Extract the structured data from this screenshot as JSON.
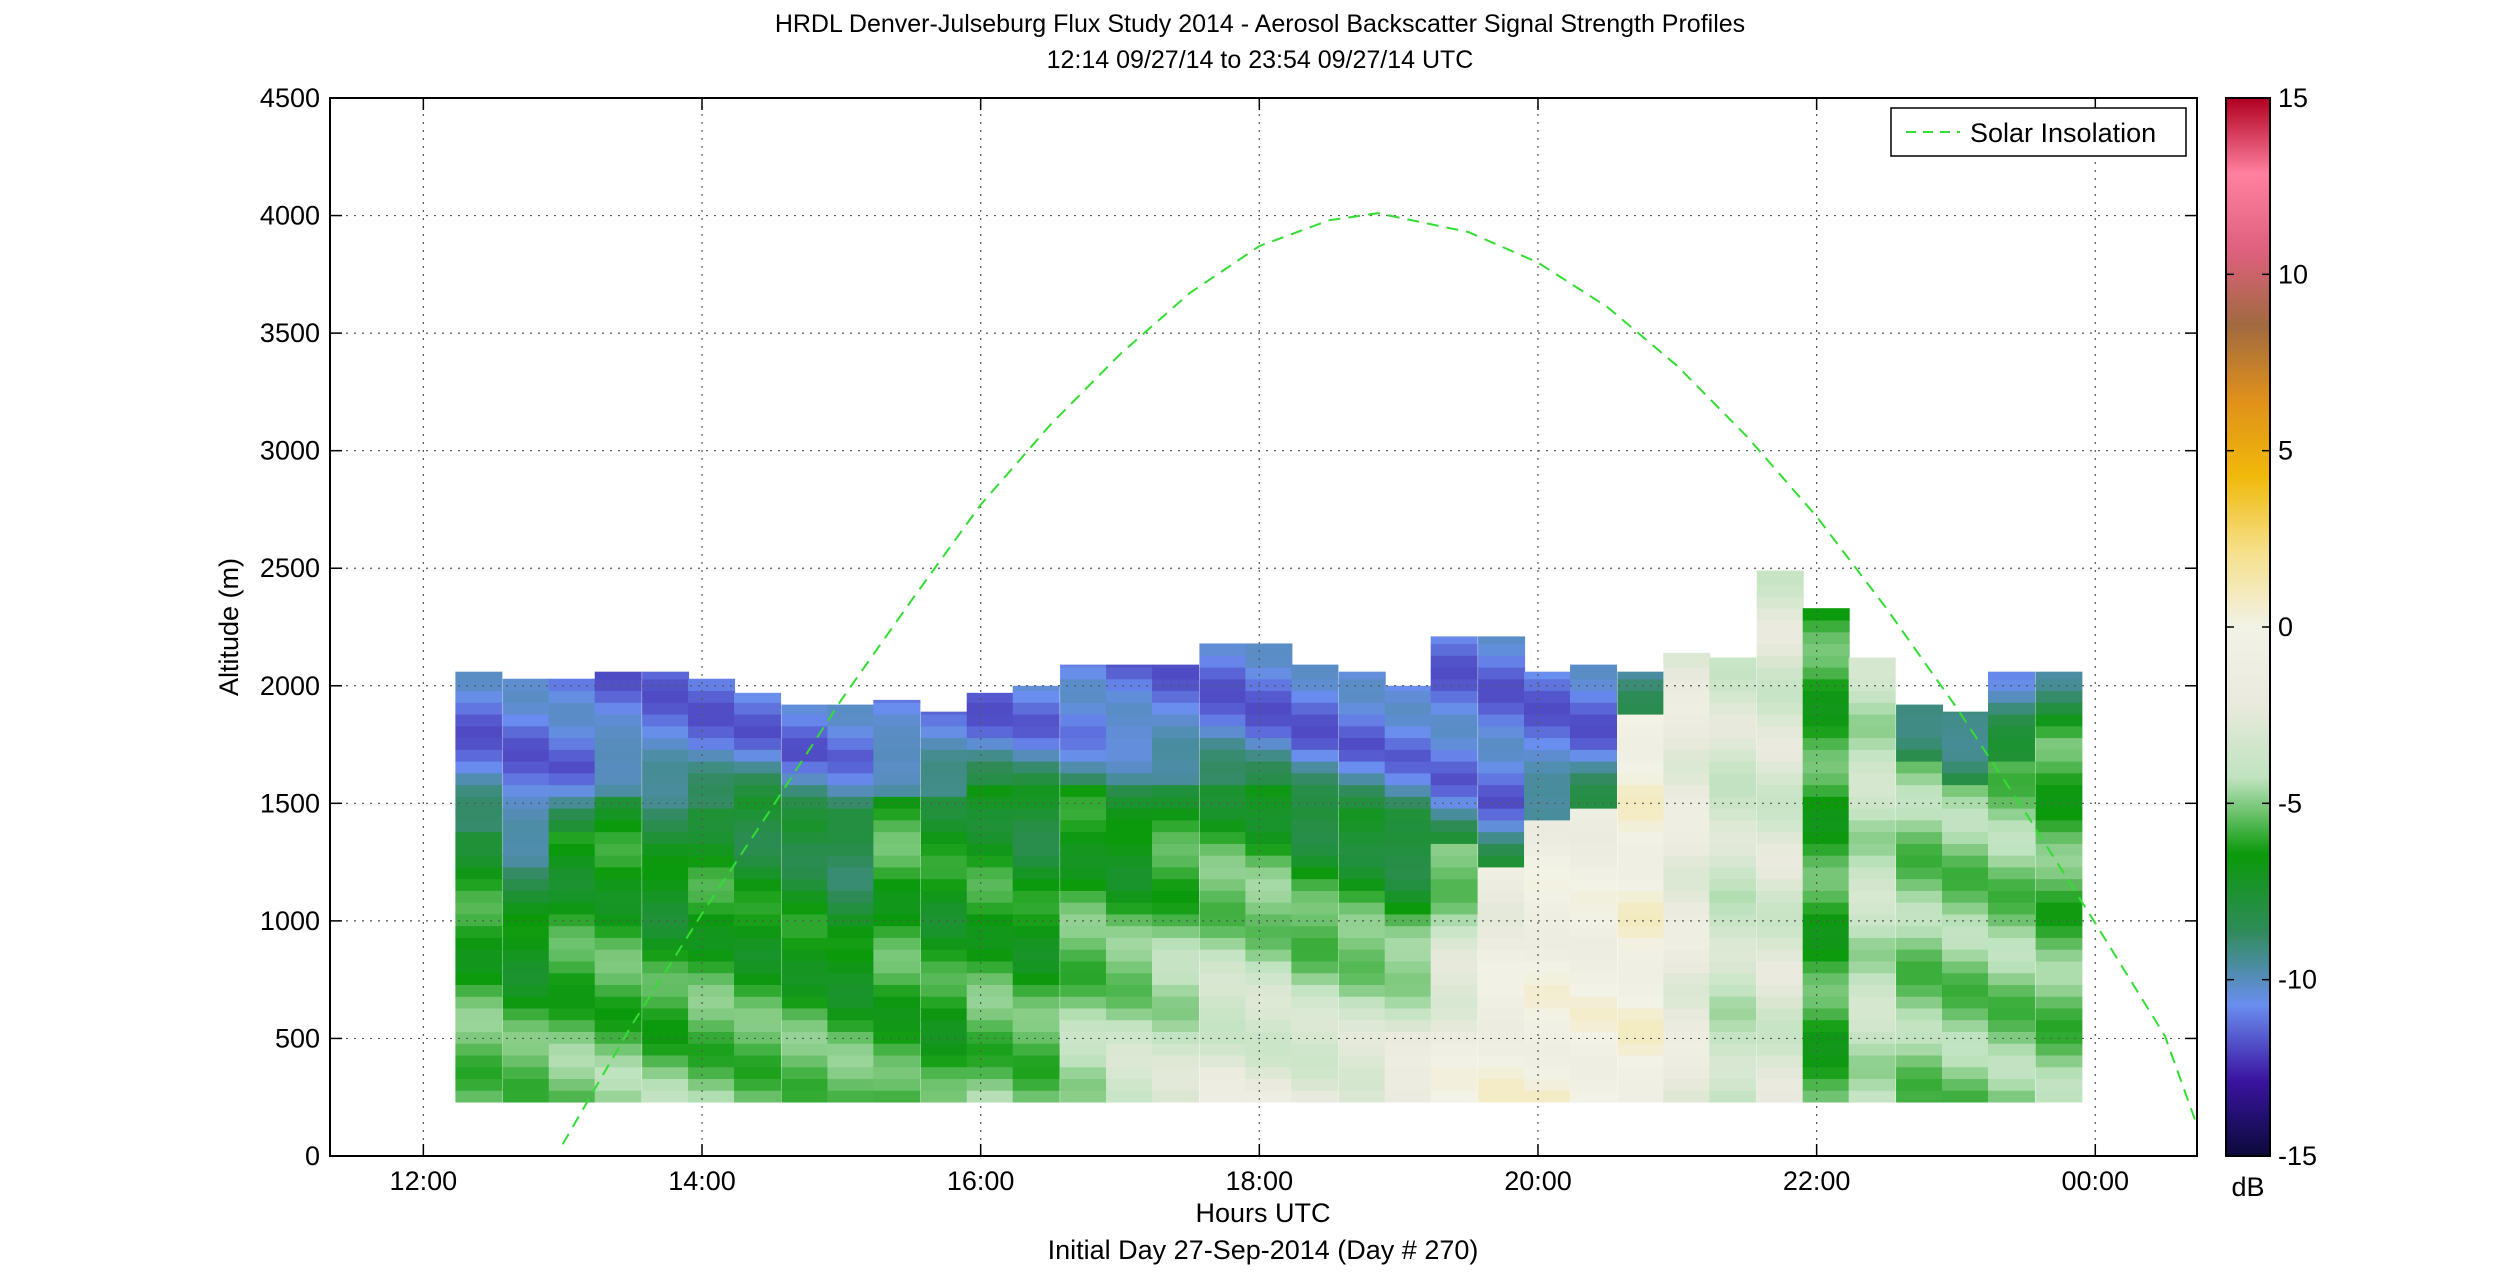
{
  "chart_data": {
    "type": "heatmap",
    "title": "HRDL Denver-Julseburg Flux Study 2014 - Aerosol Backscatter Signal Strength Profiles",
    "subtitle": "12:14 09/27/14 to 23:54 09/27/14  UTC",
    "xlabel": "Hours UTC",
    "xlabel2": "Initial Day 27-Sep-2014 (Day # 270)",
    "ylabel": "Altitude (m)",
    "xlim": [
      11.33,
      24.73
    ],
    "ylim": [
      0,
      4500
    ],
    "x_ticks": [
      12,
      14,
      16,
      18,
      20,
      22,
      24
    ],
    "x_tick_labels": [
      "12:00",
      "14:00",
      "16:00",
      "18:00",
      "20:00",
      "22:00",
      "00:00"
    ],
    "y_ticks": [
      0,
      500,
      1000,
      1500,
      2000,
      2500,
      3000,
      3500,
      4000,
      4500
    ],
    "y_tick_labels": [
      "0",
      "500",
      "1000",
      "1500",
      "2000",
      "2500",
      "3000",
      "3500",
      "4000",
      "4500"
    ],
    "grid": true,
    "legend": {
      "position": "top-right",
      "entries": [
        "Solar Insolation"
      ]
    },
    "colorbar": {
      "unit": "dB",
      "range": [
        -15,
        15
      ],
      "ticks": [
        15,
        10,
        5,
        0,
        -5,
        -10,
        -15
      ],
      "tick_labels": [
        "15",
        "10",
        "5",
        "0",
        "-5",
        "-10",
        "-15"
      ],
      "colors": [
        "#0a0a3a",
        "#3a14a0",
        "#6a8ef0",
        "#2e8b57",
        "#0a9a0a",
        "#bfe3bf",
        "#eaeade",
        "#f2f2e6",
        "#f5e08a",
        "#f0b90a",
        "#e0901a",
        "#a06a40",
        "#e06080",
        "#ff80a0",
        "#b00020"
      ]
    },
    "profile_bottom_m": 230,
    "columns": [
      {
        "t": 12.23,
        "top": 2060,
        "pbl": 1400,
        "near": -5,
        "mid": -7,
        "up": -11
      },
      {
        "t": 12.57,
        "top": 2030,
        "pbl": 1230,
        "near": -5,
        "mid": -8,
        "up": -11
      },
      {
        "t": 12.9,
        "top": 2030,
        "pbl": 1400,
        "near": -5,
        "mid": -7,
        "up": -11
      },
      {
        "t": 13.23,
        "top": 2060,
        "pbl": 1530,
        "near": -5,
        "mid": -7,
        "up": -11
      },
      {
        "t": 13.57,
        "top": 2060,
        "pbl": 1500,
        "near": -5,
        "mid": -8,
        "up": -11
      },
      {
        "t": 13.9,
        "top": 2030,
        "pbl": 1500,
        "near": -5,
        "mid": -7,
        "up": -11
      },
      {
        "t": 14.23,
        "top": 1970,
        "pbl": 1530,
        "near": -5,
        "mid": -8,
        "up": -11
      },
      {
        "t": 14.57,
        "top": 1920,
        "pbl": 1450,
        "near": -5,
        "mid": -8,
        "up": -11
      },
      {
        "t": 14.9,
        "top": 1920,
        "pbl": 1450,
        "near": -5,
        "mid": -9,
        "up": -11
      },
      {
        "t": 15.23,
        "top": 1940,
        "pbl": 1530,
        "near": -6,
        "mid": -6,
        "up": -11
      },
      {
        "t": 15.57,
        "top": 1890,
        "pbl": 1530,
        "near": -6,
        "mid": -7,
        "up": -11
      },
      {
        "t": 15.9,
        "top": 1970,
        "pbl": 1560,
        "near": -5,
        "mid": -7,
        "up": -11
      },
      {
        "t": 16.23,
        "top": 2000,
        "pbl": 1580,
        "near": -5,
        "mid": -8,
        "up": -11
      },
      {
        "t": 16.57,
        "top": 2090,
        "pbl": 1580,
        "near": -4,
        "mid": -7,
        "up": -11
      },
      {
        "t": 16.9,
        "top": 2090,
        "pbl": 1580,
        "near": -3,
        "mid": -8,
        "up": -11
      },
      {
        "t": 17.23,
        "top": 2090,
        "pbl": 1580,
        "near": -3,
        "mid": -7,
        "up": -11
      },
      {
        "t": 17.57,
        "top": 2180,
        "pbl": 1580,
        "near": -2,
        "mid": -7,
        "up": -11
      },
      {
        "t": 17.9,
        "top": 2180,
        "pbl": 1560,
        "near": -2,
        "mid": -7,
        "up": -11
      },
      {
        "t": 18.23,
        "top": 2090,
        "pbl": 1500,
        "near": -2,
        "mid": -8,
        "up": -11
      },
      {
        "t": 18.57,
        "top": 2060,
        "pbl": 1480,
        "near": -2,
        "mid": -8,
        "up": -11
      },
      {
        "t": 18.9,
        "top": 2000,
        "pbl": 1450,
        "near": -1,
        "mid": -9,
        "up": -11
      },
      {
        "t": 19.23,
        "top": 2210,
        "pbl": 1350,
        "near": 0,
        "mid": -6,
        "up": -11
      },
      {
        "t": 19.57,
        "top": 2210,
        "pbl": 1250,
        "near": 0,
        "mid": -2,
        "up": -11
      },
      {
        "t": 19.9,
        "top": 2060,
        "pbl": 1430,
        "near": 0,
        "mid": -1,
        "up": -11
      },
      {
        "t": 20.23,
        "top": 2090,
        "pbl": 1500,
        "near": 0,
        "mid": -1,
        "up": -11
      },
      {
        "t": 20.57,
        "top": 2060,
        "pbl": 1870,
        "near": 0,
        "mid": 0,
        "up": -11
      },
      {
        "t": 20.9,
        "top": 2140,
        "pbl": 2140,
        "near": -2,
        "mid": -2,
        "up": -7
      },
      {
        "t": 21.23,
        "top": 2120,
        "pbl": 2120,
        "near": -4,
        "mid": -3,
        "up": -8
      },
      {
        "t": 21.57,
        "top": 2490,
        "pbl": 2490,
        "near": -3,
        "mid": -3,
        "up": -6
      },
      {
        "t": 21.9,
        "top": 2330,
        "pbl": 2330,
        "near": -6,
        "mid": -6,
        "up": -9
      },
      {
        "t": 22.23,
        "top": 2120,
        "pbl": 2120,
        "near": -4,
        "mid": -4,
        "up": -9
      },
      {
        "t": 22.57,
        "top": 1920,
        "pbl": 1700,
        "near": -5,
        "mid": -5,
        "up": -10
      },
      {
        "t": 22.9,
        "top": 1890,
        "pbl": 1600,
        "near": -5,
        "mid": -5,
        "up": -10
      },
      {
        "t": 23.23,
        "top": 2060,
        "pbl": 1700,
        "near": -5,
        "mid": -5,
        "up": -10
      },
      {
        "t": 23.57,
        "top": 2060,
        "pbl": 1800,
        "near": -5,
        "mid": -6,
        "up": -9
      }
    ],
    "solar_insolation": {
      "name": "Solar Insolation",
      "color": "#33dd33",
      "x": [
        13.0,
        13.5,
        14.0,
        14.5,
        15.0,
        15.5,
        16.0,
        16.5,
        17.0,
        17.5,
        18.0,
        18.5,
        18.85,
        19.5,
        20.0,
        20.5,
        21.0,
        21.5,
        22.0,
        22.5,
        23.0,
        23.5,
        24.0,
        24.5,
        24.73
      ],
      "y": [
        50,
        560,
        1030,
        1480,
        1940,
        2360,
        2770,
        3110,
        3410,
        3670,
        3870,
        3980,
        4010,
        3930,
        3800,
        3610,
        3360,
        3060,
        2720,
        2330,
        1910,
        1460,
        990,
        510,
        130
      ]
    }
  }
}
